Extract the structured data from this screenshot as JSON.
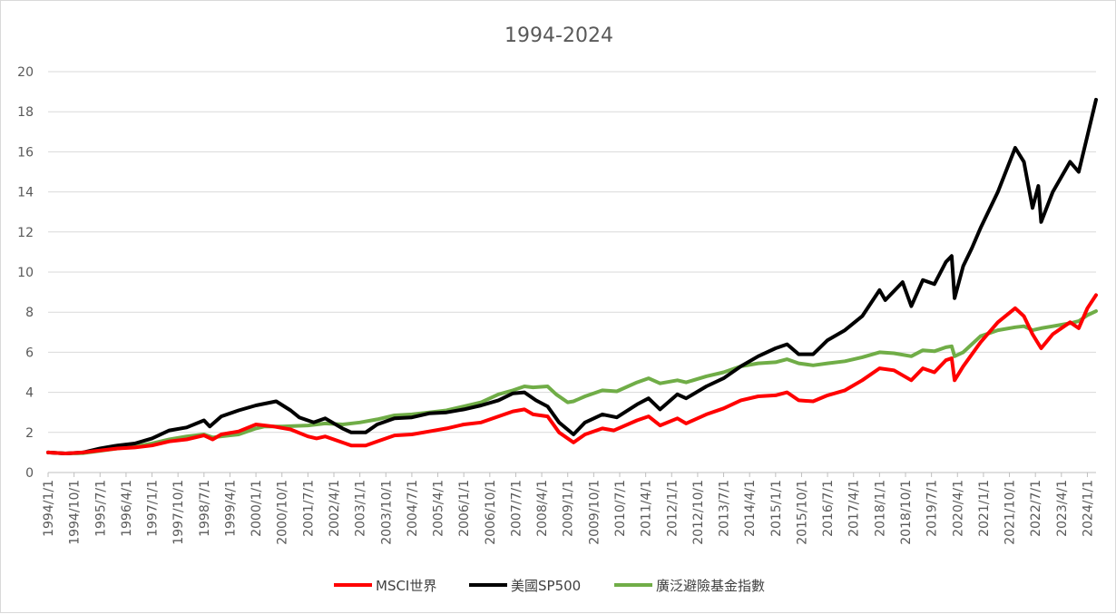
{
  "chart_data": {
    "type": "line",
    "title": "1994-2024",
    "xlabel": "",
    "ylabel": "",
    "ylim": [
      0,
      20
    ],
    "yticks": [
      0,
      2,
      4,
      6,
      8,
      10,
      12,
      14,
      16,
      18,
      20
    ],
    "grid": "horizontal",
    "legend": "bottom",
    "x_start": "1994/1/1",
    "x_end": "2024/4/1",
    "x_tick_labels": [
      "1994/1/1",
      "1994/10/1",
      "1995/7/1",
      "1996/4/1",
      "1997/1/1",
      "1997/10/1",
      "1998/7/1",
      "1999/4/1",
      "2000/1/1",
      "2000/10/1",
      "2001/7/1",
      "2002/4/1",
      "2003/1/1",
      "2003/10/1",
      "2004/7/1",
      "2005/4/1",
      "2006/1/1",
      "2006/10/1",
      "2007/7/1",
      "2008/4/1",
      "2009/1/1",
      "2009/10/1",
      "2010/7/1",
      "2011/4/1",
      "2012/1/1",
      "2012/10/1",
      "2013/7/1",
      "2014/4/1",
      "2015/1/1",
      "2015/10/1",
      "2016/7/1",
      "2017/4/1",
      "2018/1/1",
      "2018/10/1",
      "2019/7/1",
      "2020/4/1",
      "2021/1/1",
      "2021/10/1",
      "2022/7/1",
      "2023/4/1",
      "2024/1/1"
    ],
    "series": [
      {
        "name": "MSCI世界",
        "color": "#ff0000",
        "points": [
          [
            "1994/1/1",
            1.0
          ],
          [
            "1994/7/1",
            0.95
          ],
          [
            "1995/1/1",
            1.0
          ],
          [
            "1995/7/1",
            1.1
          ],
          [
            "1996/1/1",
            1.2
          ],
          [
            "1996/7/1",
            1.25
          ],
          [
            "1997/1/1",
            1.35
          ],
          [
            "1997/7/1",
            1.55
          ],
          [
            "1998/1/1",
            1.65
          ],
          [
            "1998/7/1",
            1.85
          ],
          [
            "1998/10/1",
            1.65
          ],
          [
            "1999/1/1",
            1.9
          ],
          [
            "1999/7/1",
            2.05
          ],
          [
            "2000/1/1",
            2.4
          ],
          [
            "2000/7/1",
            2.3
          ],
          [
            "2001/1/1",
            2.15
          ],
          [
            "2001/7/1",
            1.8
          ],
          [
            "2001/10/1",
            1.7
          ],
          [
            "2002/1/1",
            1.8
          ],
          [
            "2002/7/1",
            1.5
          ],
          [
            "2002/10/1",
            1.35
          ],
          [
            "2003/3/1",
            1.35
          ],
          [
            "2003/7/1",
            1.55
          ],
          [
            "2004/1/1",
            1.85
          ],
          [
            "2004/7/1",
            1.9
          ],
          [
            "2005/1/1",
            2.05
          ],
          [
            "2005/7/1",
            2.2
          ],
          [
            "2006/1/1",
            2.4
          ],
          [
            "2006/7/1",
            2.5
          ],
          [
            "2007/1/1",
            2.8
          ],
          [
            "2007/6/1",
            3.05
          ],
          [
            "2007/10/1",
            3.15
          ],
          [
            "2008/1/1",
            2.9
          ],
          [
            "2008/6/1",
            2.8
          ],
          [
            "2008/10/1",
            2.0
          ],
          [
            "2009/3/1",
            1.5
          ],
          [
            "2009/7/1",
            1.9
          ],
          [
            "2010/1/1",
            2.2
          ],
          [
            "2010/5/1",
            2.1
          ],
          [
            "2011/1/1",
            2.6
          ],
          [
            "2011/5/1",
            2.8
          ],
          [
            "2011/9/1",
            2.35
          ],
          [
            "2012/3/1",
            2.7
          ],
          [
            "2012/6/1",
            2.45
          ],
          [
            "2013/1/1",
            2.9
          ],
          [
            "2013/7/1",
            3.2
          ],
          [
            "2014/1/1",
            3.6
          ],
          [
            "2014/7/1",
            3.8
          ],
          [
            "2015/1/1",
            3.85
          ],
          [
            "2015/5/1",
            4.0
          ],
          [
            "2015/9/1",
            3.6
          ],
          [
            "2016/2/1",
            3.55
          ],
          [
            "2016/7/1",
            3.85
          ],
          [
            "2017/1/1",
            4.1
          ],
          [
            "2017/7/1",
            4.6
          ],
          [
            "2018/1/1",
            5.2
          ],
          [
            "2018/6/1",
            5.1
          ],
          [
            "2018/12/1",
            4.6
          ],
          [
            "2019/4/1",
            5.2
          ],
          [
            "2019/8/1",
            5.0
          ],
          [
            "2019/12/1",
            5.6
          ],
          [
            "2020/2/1",
            5.7
          ],
          [
            "2020/3/1",
            4.6
          ],
          [
            "2020/6/1",
            5.3
          ],
          [
            "2020/12/1",
            6.5
          ],
          [
            "2021/6/1",
            7.5
          ],
          [
            "2021/12/1",
            8.2
          ],
          [
            "2022/3/1",
            7.8
          ],
          [
            "2022/6/1",
            6.9
          ],
          [
            "2022/9/1",
            6.2
          ],
          [
            "2023/1/1",
            6.9
          ],
          [
            "2023/7/1",
            7.5
          ],
          [
            "2023/10/1",
            7.2
          ],
          [
            "2024/1/1",
            8.2
          ],
          [
            "2024/4/1",
            8.85
          ]
        ]
      },
      {
        "name": "美國SP500",
        "color": "#000000",
        "points": [
          [
            "1994/1/1",
            1.0
          ],
          [
            "1994/7/1",
            0.95
          ],
          [
            "1995/1/1",
            1.0
          ],
          [
            "1995/7/1",
            1.2
          ],
          [
            "1996/1/1",
            1.35
          ],
          [
            "1996/7/1",
            1.45
          ],
          [
            "1997/1/1",
            1.7
          ],
          [
            "1997/7/1",
            2.1
          ],
          [
            "1998/1/1",
            2.25
          ],
          [
            "1998/7/1",
            2.6
          ],
          [
            "1998/9/1",
            2.3
          ],
          [
            "1999/1/1",
            2.8
          ],
          [
            "1999/7/1",
            3.1
          ],
          [
            "2000/1/1",
            3.35
          ],
          [
            "2000/8/1",
            3.55
          ],
          [
            "2001/1/1",
            3.1
          ],
          [
            "2001/4/1",
            2.75
          ],
          [
            "2001/9/1",
            2.5
          ],
          [
            "2002/1/1",
            2.7
          ],
          [
            "2002/7/1",
            2.2
          ],
          [
            "2002/10/1",
            2.0
          ],
          [
            "2003/3/1",
            2.0
          ],
          [
            "2003/7/1",
            2.4
          ],
          [
            "2004/1/1",
            2.7
          ],
          [
            "2004/7/1",
            2.75
          ],
          [
            "2005/1/1",
            2.95
          ],
          [
            "2005/7/1",
            3.0
          ],
          [
            "2006/1/1",
            3.15
          ],
          [
            "2006/7/1",
            3.35
          ],
          [
            "2007/1/1",
            3.6
          ],
          [
            "2007/6/1",
            3.95
          ],
          [
            "2007/10/1",
            4.0
          ],
          [
            "2008/2/1",
            3.6
          ],
          [
            "2008/6/1",
            3.3
          ],
          [
            "2008/10/1",
            2.5
          ],
          [
            "2009/3/1",
            1.9
          ],
          [
            "2009/7/1",
            2.5
          ],
          [
            "2010/1/1",
            2.9
          ],
          [
            "2010/6/1",
            2.75
          ],
          [
            "2011/1/1",
            3.4
          ],
          [
            "2011/5/1",
            3.7
          ],
          [
            "2011/9/1",
            3.15
          ],
          [
            "2012/3/1",
            3.9
          ],
          [
            "2012/6/1",
            3.7
          ],
          [
            "2013/1/1",
            4.3
          ],
          [
            "2013/7/1",
            4.7
          ],
          [
            "2014/1/1",
            5.3
          ],
          [
            "2014/7/1",
            5.8
          ],
          [
            "2015/1/1",
            6.2
          ],
          [
            "2015/5/1",
            6.4
          ],
          [
            "2015/9/1",
            5.9
          ],
          [
            "2016/2/1",
            5.9
          ],
          [
            "2016/7/1",
            6.6
          ],
          [
            "2017/1/1",
            7.1
          ],
          [
            "2017/7/1",
            7.8
          ],
          [
            "2018/1/1",
            9.1
          ],
          [
            "2018/3/1",
            8.6
          ],
          [
            "2018/9/1",
            9.5
          ],
          [
            "2018/12/1",
            8.3
          ],
          [
            "2019/4/1",
            9.6
          ],
          [
            "2019/8/1",
            9.4
          ],
          [
            "2019/12/1",
            10.5
          ],
          [
            "2020/2/1",
            10.8
          ],
          [
            "2020/3/1",
            8.7
          ],
          [
            "2020/6/1",
            10.3
          ],
          [
            "2020/9/1",
            11.2
          ],
          [
            "2020/12/1",
            12.2
          ],
          [
            "2021/6/1",
            14.0
          ],
          [
            "2021/12/1",
            16.2
          ],
          [
            "2022/3/1",
            15.5
          ],
          [
            "2022/6/1",
            13.2
          ],
          [
            "2022/8/1",
            14.3
          ],
          [
            "2022/9/1",
            12.5
          ],
          [
            "2023/1/1",
            14.0
          ],
          [
            "2023/7/1",
            15.5
          ],
          [
            "2023/10/1",
            15.0
          ],
          [
            "2024/1/1",
            16.8
          ],
          [
            "2024/4/1",
            18.6
          ]
        ]
      },
      {
        "name": "廣泛避險基金指數",
        "color": "#70ad47",
        "points": [
          [
            "1994/1/1",
            1.0
          ],
          [
            "1994/7/1",
            0.95
          ],
          [
            "1995/1/1",
            0.97
          ],
          [
            "1995/7/1",
            1.08
          ],
          [
            "1996/1/1",
            1.2
          ],
          [
            "1996/7/1",
            1.3
          ],
          [
            "1997/1/1",
            1.45
          ],
          [
            "1997/7/1",
            1.65
          ],
          [
            "1998/1/1",
            1.8
          ],
          [
            "1998/7/1",
            1.9
          ],
          [
            "1998/10/1",
            1.75
          ],
          [
            "1999/1/1",
            1.8
          ],
          [
            "1999/7/1",
            1.9
          ],
          [
            "2000/1/1",
            2.2
          ],
          [
            "2000/4/1",
            2.3
          ],
          [
            "2000/10/1",
            2.3
          ],
          [
            "2001/7/1",
            2.35
          ],
          [
            "2002/1/1",
            2.45
          ],
          [
            "2002/7/1",
            2.4
          ],
          [
            "2003/1/1",
            2.5
          ],
          [
            "2003/7/1",
            2.65
          ],
          [
            "2004/1/1",
            2.85
          ],
          [
            "2004/7/1",
            2.9
          ],
          [
            "2005/1/1",
            3.0
          ],
          [
            "2005/7/1",
            3.1
          ],
          [
            "2006/1/1",
            3.3
          ],
          [
            "2006/7/1",
            3.5
          ],
          [
            "2007/1/1",
            3.9
          ],
          [
            "2007/6/1",
            4.1
          ],
          [
            "2007/10/1",
            4.3
          ],
          [
            "2008/1/1",
            4.25
          ],
          [
            "2008/6/1",
            4.3
          ],
          [
            "2008/9/1",
            3.9
          ],
          [
            "2009/1/1",
            3.5
          ],
          [
            "2009/3/1",
            3.55
          ],
          [
            "2009/7/1",
            3.8
          ],
          [
            "2010/1/1",
            4.1
          ],
          [
            "2010/6/1",
            4.05
          ],
          [
            "2011/1/1",
            4.5
          ],
          [
            "2011/5/1",
            4.7
          ],
          [
            "2011/9/1",
            4.45
          ],
          [
            "2012/3/1",
            4.6
          ],
          [
            "2012/6/1",
            4.5
          ],
          [
            "2013/1/1",
            4.8
          ],
          [
            "2013/7/1",
            5.0
          ],
          [
            "2014/1/1",
            5.3
          ],
          [
            "2014/7/1",
            5.45
          ],
          [
            "2015/1/1",
            5.5
          ],
          [
            "2015/5/1",
            5.65
          ],
          [
            "2015/9/1",
            5.45
          ],
          [
            "2016/2/1",
            5.35
          ],
          [
            "2016/7/1",
            5.45
          ],
          [
            "2017/1/1",
            5.55
          ],
          [
            "2017/7/1",
            5.75
          ],
          [
            "2018/1/1",
            6.0
          ],
          [
            "2018/6/1",
            5.95
          ],
          [
            "2018/12/1",
            5.8
          ],
          [
            "2019/4/1",
            6.1
          ],
          [
            "2019/8/1",
            6.05
          ],
          [
            "2019/12/1",
            6.25
          ],
          [
            "2020/2/1",
            6.3
          ],
          [
            "2020/3/1",
            5.8
          ],
          [
            "2020/6/1",
            6.0
          ],
          [
            "2020/12/1",
            6.8
          ],
          [
            "2021/6/1",
            7.1
          ],
          [
            "2021/12/1",
            7.25
          ],
          [
            "2022/3/1",
            7.3
          ],
          [
            "2022/6/1",
            7.1
          ],
          [
            "2022/9/1",
            7.2
          ],
          [
            "2023/1/1",
            7.3
          ],
          [
            "2023/7/1",
            7.45
          ],
          [
            "2023/10/1",
            7.55
          ],
          [
            "2024/1/1",
            7.85
          ],
          [
            "2024/4/1",
            8.05
          ]
        ]
      }
    ]
  }
}
